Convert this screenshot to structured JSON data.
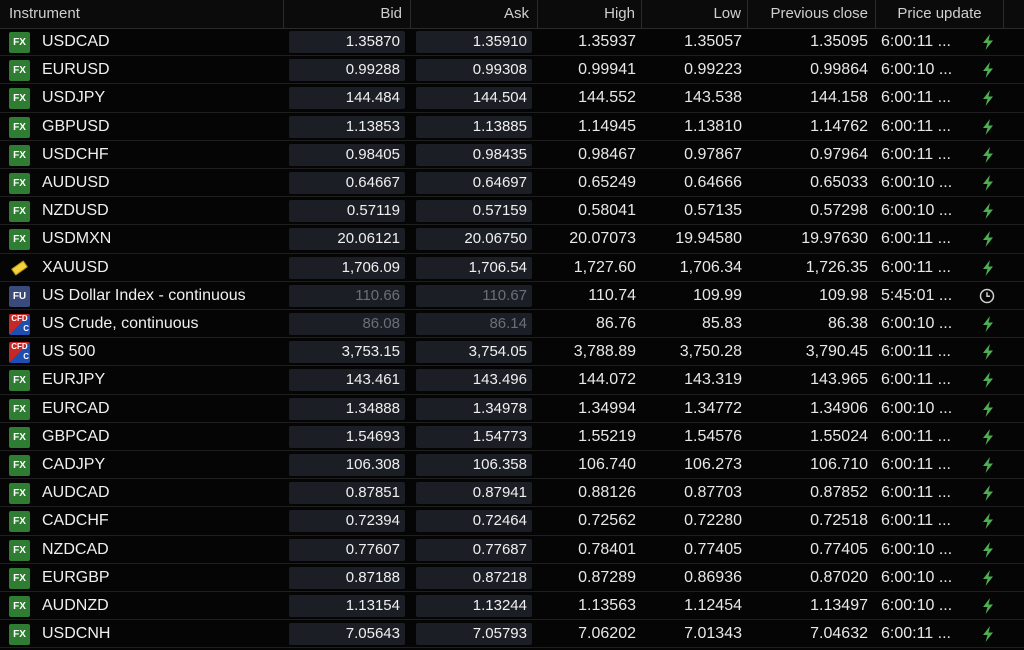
{
  "headers": {
    "instrument": "Instrument",
    "bid": "Bid",
    "ask": "Ask",
    "high": "High",
    "low": "Low",
    "prev_close": "Previous close",
    "price_update": "Price update"
  },
  "colors": {
    "bolt": "#4caf50",
    "fx_badge": "#2e7d32",
    "dim_text": "#6b6f77"
  },
  "rows": [
    {
      "icon": "fx",
      "name": "USDCAD",
      "bid": "1.35870",
      "ask": "1.35910",
      "high": "1.35937",
      "low": "1.35057",
      "prev": "1.35095",
      "time": "6:00:11 ...",
      "status": "bolt",
      "dim": false
    },
    {
      "icon": "fx",
      "name": "EURUSD",
      "bid": "0.99288",
      "ask": "0.99308",
      "high": "0.99941",
      "low": "0.99223",
      "prev": "0.99864",
      "time": "6:00:10 ...",
      "status": "bolt",
      "dim": false
    },
    {
      "icon": "fx",
      "name": "USDJPY",
      "bid": "144.484",
      "ask": "144.504",
      "high": "144.552",
      "low": "143.538",
      "prev": "144.158",
      "time": "6:00:11 ...",
      "status": "bolt",
      "dim": false
    },
    {
      "icon": "fx",
      "name": "GBPUSD",
      "bid": "1.13853",
      "ask": "1.13885",
      "high": "1.14945",
      "low": "1.13810",
      "prev": "1.14762",
      "time": "6:00:11 ...",
      "status": "bolt",
      "dim": false
    },
    {
      "icon": "fx",
      "name": "USDCHF",
      "bid": "0.98405",
      "ask": "0.98435",
      "high": "0.98467",
      "low": "0.97867",
      "prev": "0.97964",
      "time": "6:00:11 ...",
      "status": "bolt",
      "dim": false
    },
    {
      "icon": "fx",
      "name": "AUDUSD",
      "bid": "0.64667",
      "ask": "0.64697",
      "high": "0.65249",
      "low": "0.64666",
      "prev": "0.65033",
      "time": "6:00:10 ...",
      "status": "bolt",
      "dim": false
    },
    {
      "icon": "fx",
      "name": "NZDUSD",
      "bid": "0.57119",
      "ask": "0.57159",
      "high": "0.58041",
      "low": "0.57135",
      "prev": "0.57298",
      "time": "6:00:10 ...",
      "status": "bolt",
      "dim": false
    },
    {
      "icon": "fx",
      "name": "USDMXN",
      "bid": "20.06121",
      "ask": "20.06750",
      "high": "20.07073",
      "low": "19.94580",
      "prev": "19.97630",
      "time": "6:00:11 ...",
      "status": "bolt",
      "dim": false
    },
    {
      "icon": "gold",
      "name": "XAUUSD",
      "bid": "1,706.09",
      "ask": "1,706.54",
      "high": "1,727.60",
      "low": "1,706.34",
      "prev": "1,726.35",
      "time": "6:00:11 ...",
      "status": "bolt",
      "dim": false
    },
    {
      "icon": "fu",
      "name": "US Dollar Index - continuous",
      "bid": "110.66",
      "ask": "110.67",
      "high": "110.74",
      "low": "109.99",
      "prev": "109.98",
      "time": "5:45:01 ...",
      "status": "clock",
      "dim": true
    },
    {
      "icon": "cfd",
      "name": "US Crude, continuous",
      "bid": "86.08",
      "ask": "86.14",
      "high": "86.76",
      "low": "85.83",
      "prev": "86.38",
      "time": "6:00:10 ...",
      "status": "bolt",
      "dim": true
    },
    {
      "icon": "cfd",
      "name": "US 500",
      "bid": "3,753.15",
      "ask": "3,754.05",
      "high": "3,788.89",
      "low": "3,750.28",
      "prev": "3,790.45",
      "time": "6:00:11 ...",
      "status": "bolt",
      "dim": false
    },
    {
      "icon": "fx",
      "name": "EURJPY",
      "bid": "143.461",
      "ask": "143.496",
      "high": "144.072",
      "low": "143.319",
      "prev": "143.965",
      "time": "6:00:11 ...",
      "status": "bolt",
      "dim": false
    },
    {
      "icon": "fx",
      "name": "EURCAD",
      "bid": "1.34888",
      "ask": "1.34978",
      "high": "1.34994",
      "low": "1.34772",
      "prev": "1.34906",
      "time": "6:00:10 ...",
      "status": "bolt",
      "dim": false
    },
    {
      "icon": "fx",
      "name": "GBPCAD",
      "bid": "1.54693",
      "ask": "1.54773",
      "high": "1.55219",
      "low": "1.54576",
      "prev": "1.55024",
      "time": "6:00:11 ...",
      "status": "bolt",
      "dim": false
    },
    {
      "icon": "fx",
      "name": "CADJPY",
      "bid": "106.308",
      "ask": "106.358",
      "high": "106.740",
      "low": "106.273",
      "prev": "106.710",
      "time": "6:00:11 ...",
      "status": "bolt",
      "dim": false
    },
    {
      "icon": "fx",
      "name": "AUDCAD",
      "bid": "0.87851",
      "ask": "0.87941",
      "high": "0.88126",
      "low": "0.87703",
      "prev": "0.87852",
      "time": "6:00:11 ...",
      "status": "bolt",
      "dim": false
    },
    {
      "icon": "fx",
      "name": "CADCHF",
      "bid": "0.72394",
      "ask": "0.72464",
      "high": "0.72562",
      "low": "0.72280",
      "prev": "0.72518",
      "time": "6:00:11 ...",
      "status": "bolt",
      "dim": false
    },
    {
      "icon": "fx",
      "name": "NZDCAD",
      "bid": "0.77607",
      "ask": "0.77687",
      "high": "0.78401",
      "low": "0.77405",
      "prev": "0.77405",
      "time": "6:00:10 ...",
      "status": "bolt",
      "dim": false
    },
    {
      "icon": "fx",
      "name": "EURGBP",
      "bid": "0.87188",
      "ask": "0.87218",
      "high": "0.87289",
      "low": "0.86936",
      "prev": "0.87020",
      "time": "6:00:10 ...",
      "status": "bolt",
      "dim": false
    },
    {
      "icon": "fx",
      "name": "AUDNZD",
      "bid": "1.13154",
      "ask": "1.13244",
      "high": "1.13563",
      "low": "1.12454",
      "prev": "1.13497",
      "time": "6:00:10 ...",
      "status": "bolt",
      "dim": false
    },
    {
      "icon": "fx",
      "name": "USDCNH",
      "bid": "7.05643",
      "ask": "7.05793",
      "high": "7.06202",
      "low": "7.01343",
      "prev": "7.04632",
      "time": "6:00:11 ...",
      "status": "bolt",
      "dim": false
    }
  ],
  "badges": {
    "fx": "FX",
    "fu": "FU",
    "cfd_top": "CFD",
    "cfd_bottom": "C"
  }
}
